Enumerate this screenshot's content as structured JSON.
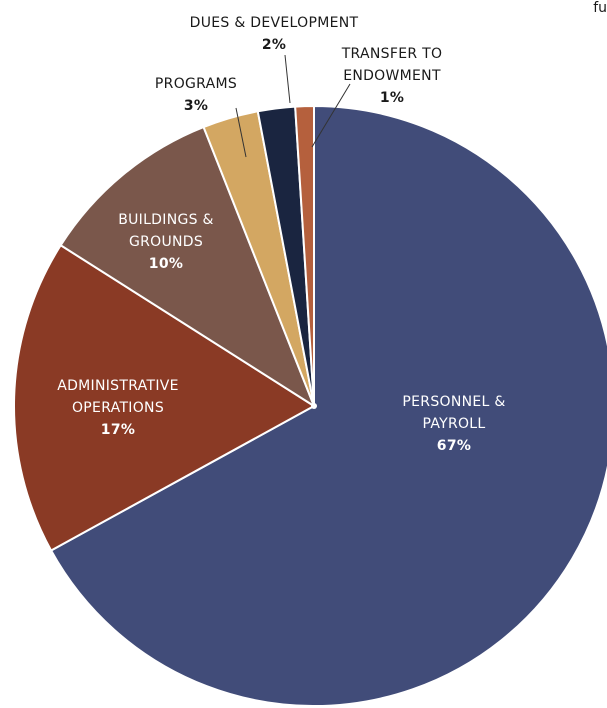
{
  "corner_text": "fu",
  "chart_data": {
    "type": "pie",
    "title": "",
    "slices": [
      {
        "name": "PERSONNEL &\nPAYROLL",
        "value": 67,
        "label": "67%",
        "color": "#414c79"
      },
      {
        "name": "ADMINISTRATIVE\nOPERATIONS",
        "value": 17,
        "label": "17%",
        "color": "#8a3a25"
      },
      {
        "name": "BUILDINGS &\nGROUNDS",
        "value": 10,
        "label": "10%",
        "color": "#7a574b"
      },
      {
        "name": "PROGRAMS",
        "value": 3,
        "label": "3%",
        "color": "#d3a762"
      },
      {
        "name": "DUES & DEVELOPMENT",
        "value": 2,
        "label": "2%",
        "color": "#1a2540"
      },
      {
        "name": "TRANSFER TO\nENDOWMENT",
        "value": 1,
        "label": "1%",
        "color": "#b5603d"
      }
    ],
    "start_angle_deg": 0,
    "direction": "clockwise",
    "label_placement": [
      "inside",
      "inside",
      "inside",
      "outside",
      "outside",
      "outside"
    ]
  }
}
